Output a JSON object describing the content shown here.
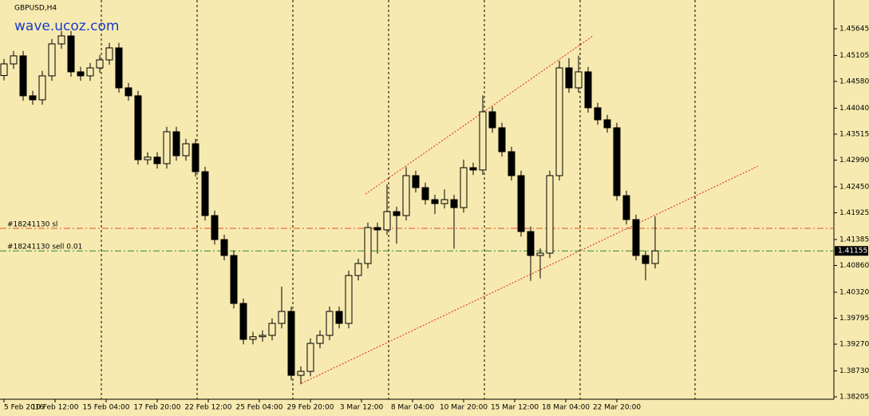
{
  "chart_data": {
    "type": "candlestick",
    "title": "GBPUSD,H4",
    "watermark": "wave.ucoz.com",
    "x": [
      0,
      3,
      6,
      9,
      12,
      15,
      18,
      21,
      24,
      27,
      30,
      33,
      36,
      39,
      42,
      45,
      48,
      51,
      54,
      57,
      60,
      63,
      66,
      69,
      72,
      75,
      78,
      81,
      84,
      87,
      90,
      93,
      96,
      99,
      102,
      105,
      108,
      111,
      114,
      117,
      120,
      123,
      126,
      129,
      132,
      135,
      138,
      141,
      144,
      147,
      150,
      153,
      156,
      159,
      162,
      165,
      168,
      171,
      174,
      177,
      180,
      183,
      186,
      189,
      192,
      195,
      198,
      201,
      204
    ],
    "open": [
      1.447,
      1.44935,
      1.45097,
      1.4429,
      1.44209,
      1.44693,
      1.45339,
      1.455,
      1.44774,
      1.44693,
      1.44854,
      1.45016,
      1.45258,
      1.44451,
      1.4429,
      1.42998,
      1.4305,
      1.42918,
      1.43563,
      1.43079,
      1.43321,
      1.42756,
      1.41869,
      1.41384,
      1.41062,
      1.40093,
      1.39367,
      1.3942,
      1.39448,
      1.3969,
      1.39932,
      1.38641,
      1.38721,
      1.39286,
      1.39448,
      1.39932,
      1.3969,
      1.40658,
      1.409,
      1.41627,
      1.4158,
      1.41949,
      1.41869,
      1.42676,
      1.42434,
      1.42191,
      1.42111,
      1.42191,
      1.4203,
      1.42837,
      1.4279,
      1.43967,
      1.43644,
      1.4316,
      1.42676,
      1.41546,
      1.41062,
      1.4111,
      1.42676,
      1.44854,
      1.44451,
      1.44774,
      1.44048,
      1.43805,
      1.43644,
      1.42272,
      1.41788,
      1.41062,
      1.409
    ],
    "high": [
      1.45035,
      1.45197,
      1.45197,
      1.4439,
      1.44793,
      1.45439,
      1.456,
      1.456,
      1.44874,
      1.44954,
      1.45116,
      1.45358,
      1.45358,
      1.44551,
      1.4439,
      1.4315,
      1.4315,
      1.43663,
      1.43663,
      1.43421,
      1.43421,
      1.42856,
      1.41969,
      1.41484,
      1.41162,
      1.40193,
      1.3952,
      1.39548,
      1.3979,
      1.40432,
      1.40032,
      1.38821,
      1.39386,
      1.39548,
      1.40032,
      1.40032,
      1.40758,
      1.41,
      1.41727,
      1.41727,
      1.425,
      1.42049,
      1.4285,
      1.42776,
      1.42534,
      1.42291,
      1.424,
      1.42291,
      1.43,
      1.42937,
      1.443,
      1.44067,
      1.43744,
      1.4326,
      1.42776,
      1.41646,
      1.4121,
      1.42776,
      1.45,
      1.4505,
      1.451,
      1.44874,
      1.44148,
      1.43905,
      1.43744,
      1.42372,
      1.41888,
      1.41162,
      1.4185
    ],
    "low": [
      1.446,
      1.44835,
      1.4419,
      1.44109,
      1.44109,
      1.44593,
      1.45239,
      1.44674,
      1.44593,
      1.44593,
      1.44754,
      1.44916,
      1.44351,
      1.4419,
      1.42898,
      1.42898,
      1.42818,
      1.42818,
      1.42979,
      1.42979,
      1.42656,
      1.41769,
      1.41284,
      1.40962,
      1.39993,
      1.39267,
      1.39267,
      1.3932,
      1.39348,
      1.3959,
      1.38541,
      1.3846,
      1.38621,
      1.39186,
      1.39348,
      1.3959,
      1.3959,
      1.40558,
      1.408,
      1.411,
      1.4148,
      1.413,
      1.41769,
      1.42334,
      1.42091,
      1.419,
      1.42011,
      1.412,
      1.4193,
      1.4269,
      1.4269,
      1.43544,
      1.4306,
      1.42576,
      1.41446,
      1.4055,
      1.406,
      1.4101,
      1.42576,
      1.44351,
      1.44351,
      1.43948,
      1.43705,
      1.43544,
      1.42172,
      1.41688,
      1.40962,
      1.4056,
      1.408
    ],
    "close": [
      1.44935,
      1.45097,
      1.4429,
      1.44209,
      1.44693,
      1.45339,
      1.455,
      1.44774,
      1.44693,
      1.44854,
      1.45016,
      1.45258,
      1.44451,
      1.4429,
      1.42998,
      1.4305,
      1.42918,
      1.43563,
      1.43079,
      1.43321,
      1.42756,
      1.41869,
      1.41384,
      1.41062,
      1.40093,
      1.39367,
      1.3942,
      1.39448,
      1.3969,
      1.39932,
      1.38641,
      1.38721,
      1.39286,
      1.39448,
      1.39932,
      1.3969,
      1.40658,
      1.409,
      1.41627,
      1.4158,
      1.41949,
      1.41869,
      1.42676,
      1.42434,
      1.42191,
      1.42111,
      1.42191,
      1.4203,
      1.42837,
      1.4279,
      1.43967,
      1.43644,
      1.4316,
      1.42676,
      1.41546,
      1.41062,
      1.4111,
      1.42676,
      1.44854,
      1.44451,
      1.44774,
      1.44048,
      1.43805,
      1.43644,
      1.42272,
      1.41788,
      1.41062,
      1.409,
      1.41155
    ],
    "up_color": "#f7eab0",
    "down_color": "#000000",
    "wick_color": "#000000",
    "xlim": [
      -1.25,
      260
    ],
    "xticks": [
      {
        "value": 0,
        "label": "5 Feb 2016"
      },
      {
        "value": 16,
        "label": "10 Feb 12:00"
      },
      {
        "value": 32,
        "label": "15 Feb 04:00"
      },
      {
        "value": 48,
        "label": "17 Feb 20:00"
      },
      {
        "value": 64,
        "label": "22 Feb 12:00"
      },
      {
        "value": 80,
        "label": "25 Feb 04:00"
      },
      {
        "value": 96,
        "label": "29 Feb 20:00"
      },
      {
        "value": 112,
        "label": "3 Mar 12:00"
      },
      {
        "value": 128,
        "label": "8 Mar 04:00"
      },
      {
        "value": 144,
        "label": "10 Mar 20:00"
      },
      {
        "value": 160,
        "label": "15 Mar 12:00"
      },
      {
        "value": 176,
        "label": "18 Mar 04:00"
      },
      {
        "value": 192,
        "label": "22 Mar 20:00"
      }
    ],
    "ylim": [
      1.38157,
      1.46226
    ],
    "yticks": [
      1.45645,
      1.45105,
      {
        "value": 1.4458,
        "label": "1.44580"
      },
      {
        "value": 1.4404,
        "label": "1.44040"
      },
      1.43515,
      {
        "value": 1.4299,
        "label": "1.42990"
      },
      {
        "value": 1.4245,
        "label": "1.42450"
      },
      1.41925,
      1.41385,
      {
        "value": 1.4086,
        "label": "1.40860"
      },
      {
        "value": 1.4032,
        "label": "1.40320"
      },
      1.39795,
      {
        "value": 1.3927,
        "label": "1.39270"
      },
      {
        "value": 1.3873,
        "label": "1.38730"
      },
      1.38205
    ],
    "levels": [
      {
        "name": "#18241130 sl",
        "value": 1.4161,
        "color": "#e0502a"
      },
      {
        "name": "#18241130 sell 0.01",
        "value": 1.41155,
        "color": "#2e8b2e"
      }
    ],
    "trendlines": [
      {
        "x": [
          113.25,
          184.5
        ],
        "y": [
          1.42304,
          1.455
        ],
        "color": "#e02020"
      },
      {
        "x": [
          93.25,
          236.25
        ],
        "y": [
          1.38479,
          1.42869
        ],
        "color": "#e02020"
      }
    ]
  }
}
